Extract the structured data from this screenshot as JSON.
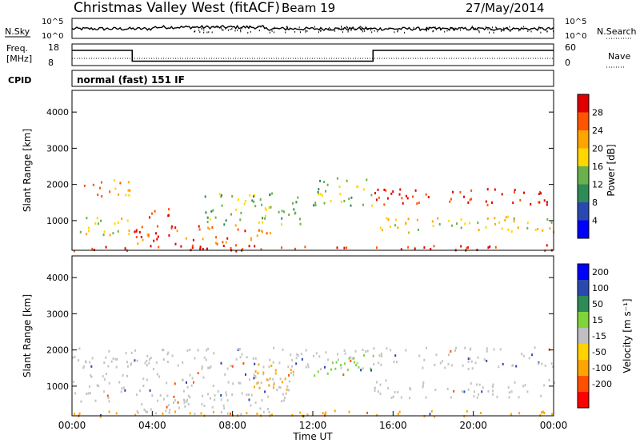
{
  "header": {
    "station": "Christmas Valley West (fitACF)",
    "beam": "Beam 19",
    "date": "27/May/2014"
  },
  "panels": {
    "nsky": {
      "label": "N.Sky",
      "ticks": [
        "10^5",
        "10^0"
      ]
    },
    "nsearch": {
      "label": "N.Search",
      "ticks": [
        "10^5",
        "10^0"
      ]
    },
    "freq": {
      "label_top": "Freq.",
      "label_unit": "[MHz]",
      "ticks": [
        "18",
        "8"
      ],
      "values": [
        {
          "from_hour": 0,
          "to_hour": 3,
          "mhz": 16.5
        },
        {
          "from_hour": 3,
          "to_hour": 15,
          "mhz": 11.5
        },
        {
          "from_hour": 15,
          "to_hour": 24,
          "mhz": 16.5
        }
      ]
    },
    "nave": {
      "label": "Nave",
      "ticks": [
        "60",
        "0"
      ]
    },
    "cpid": {
      "label": "CPID",
      "text": "normal (fast) 151 IF"
    }
  },
  "chart_data": [
    {
      "type": "heatmap",
      "title": "Power",
      "xlabel": "",
      "ylabel": "Slant Range [km]",
      "yticks": [
        "1000",
        "2000",
        "3000",
        "4000"
      ],
      "ylim": [
        180,
        4600
      ],
      "colorbar": {
        "label": "Power [dB]",
        "ticks": [
          "4",
          "8",
          "12",
          "16",
          "20",
          "24",
          "28"
        ],
        "colors": [
          "#0000ff",
          "#2a49b0",
          "#2e8b57",
          "#6ab04c",
          "#ffd700",
          "#ffa500",
          "#ff5500",
          "#e00000"
        ]
      },
      "regions": [
        {
          "from_hour": 0.0,
          "to_hour": 2.9,
          "range_km": [
            1700,
            2150
          ],
          "level": 5
        },
        {
          "from_hour": 0.0,
          "to_hour": 2.9,
          "range_km": [
            600,
            1150
          ],
          "level": 4
        },
        {
          "from_hour": 3.0,
          "to_hour": 5.0,
          "range_km": [
            1100,
            1350
          ],
          "level": 7
        },
        {
          "from_hour": 3.0,
          "to_hour": 10.0,
          "range_km": [
            350,
            900
          ],
          "level": 6
        },
        {
          "from_hour": 6.5,
          "to_hour": 11.5,
          "range_km": [
            900,
            1800
          ],
          "level": 3
        },
        {
          "from_hour": 12.0,
          "to_hour": 15.0,
          "range_km": [
            1400,
            2200
          ],
          "level": 3
        },
        {
          "from_hour": 15.0,
          "to_hour": 24.0,
          "range_km": [
            1450,
            1900
          ],
          "level": 7
        },
        {
          "from_hour": 15.0,
          "to_hour": 24.0,
          "range_km": [
            700,
            1150
          ],
          "level": 4
        },
        {
          "from_hour": 0.0,
          "to_hour": 24.0,
          "range_km": [
            180,
            350
          ],
          "level": 7
        }
      ]
    },
    {
      "type": "heatmap",
      "title": "Velocity",
      "xlabel": "Time UT",
      "ylabel": "Slant Range [km]",
      "yticks": [
        "1000",
        "2000",
        "3000",
        "4000"
      ],
      "ylim": [
        180,
        4600
      ],
      "xticks": [
        "00:00",
        "04:00",
        "08:00",
        "12:00",
        "16:00",
        "20:00",
        "00:00"
      ],
      "xlim": [
        0,
        24
      ],
      "colorbar": {
        "label": "Velocity [m s⁻¹]",
        "ticks": [
          "200",
          "100",
          "50",
          "15",
          "-15",
          "-50",
          "-100",
          "-200"
        ],
        "colors": [
          "#0000ff",
          "#2a49b0",
          "#2e8b57",
          "#7fd43c",
          "#c0c0c0",
          "#ffd200",
          "#ffa500",
          "#ff5000",
          "#ff0000"
        ]
      },
      "regions": [
        {
          "from_hour": 0.0,
          "to_hour": 24.0,
          "range_km": [
            1500,
            2100
          ],
          "level": "gray"
        },
        {
          "from_hour": 0.0,
          "to_hour": 11.0,
          "range_km": [
            600,
            1400
          ],
          "level": "gray"
        },
        {
          "from_hour": 9.0,
          "to_hour": 11.0,
          "range_km": [
            900,
            1700
          ],
          "level": "orange"
        },
        {
          "from_hour": 3.0,
          "to_hour": 10.0,
          "range_km": [
            250,
            700
          ],
          "level": "gray"
        },
        {
          "from_hour": 12.0,
          "to_hour": 15.0,
          "range_km": [
            1300,
            1900
          ],
          "level": "green"
        },
        {
          "from_hour": 15.0,
          "to_hour": 24.0,
          "range_km": [
            700,
            1200
          ],
          "level": "gray"
        },
        {
          "from_hour": 0.0,
          "to_hour": 24.0,
          "range_km": [
            180,
            350
          ],
          "level": "orange"
        }
      ]
    }
  ]
}
